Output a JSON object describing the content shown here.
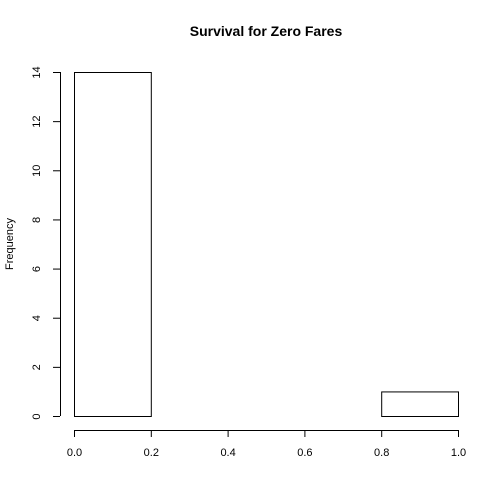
{
  "chart_data": {
    "type": "bar",
    "title": "Survival for Zero Fares",
    "xlabel": "",
    "ylabel": "Frequency",
    "bins": [
      {
        "x0": 0.0,
        "x1": 0.2,
        "count": 14
      },
      {
        "x0": 0.2,
        "x1": 0.4,
        "count": 0
      },
      {
        "x0": 0.4,
        "x1": 0.6,
        "count": 0
      },
      {
        "x0": 0.6,
        "x1": 0.8,
        "count": 0
      },
      {
        "x0": 0.8,
        "x1": 1.0,
        "count": 1
      }
    ],
    "xlim": [
      0.0,
      1.0
    ],
    "ylim": [
      0,
      14
    ],
    "x_ticks": [
      "0.0",
      "0.2",
      "0.4",
      "0.6",
      "0.8",
      "1.0"
    ],
    "y_ticks": [
      "0",
      "2",
      "4",
      "6",
      "8",
      "10",
      "12",
      "14"
    ],
    "grid": false,
    "bar_fill": "#ffffff",
    "bar_stroke": "#000000"
  }
}
